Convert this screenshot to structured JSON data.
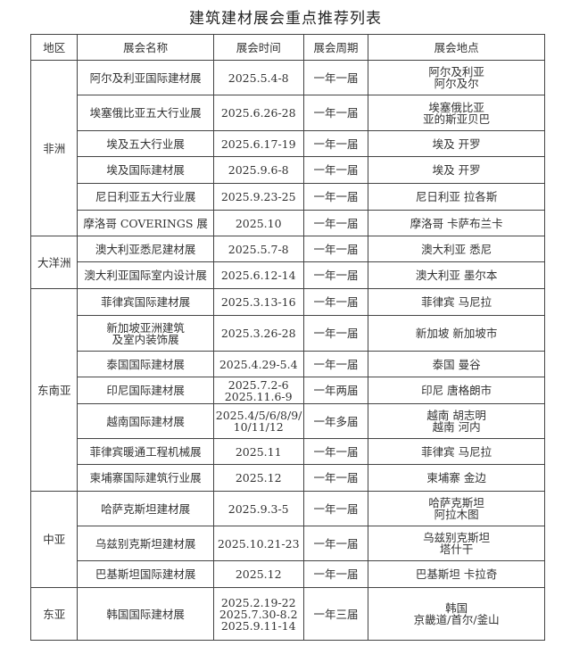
{
  "title": "建筑建材展会重点推荐列表",
  "headers": [
    "地区",
    "展会名称",
    "展会时间",
    "展会周期",
    "展会地点"
  ],
  "groups": [
    {
      "region": "非洲",
      "rows": [
        {
          "name": "阿尔及利亚国际建材展",
          "time": "2025.5.4-8",
          "cycle": "一年一届",
          "place": "阿尔及利亚\n阿尔及尔"
        },
        {
          "name": "埃塞俄比亚五大行业展",
          "time": "2025.6.26-28",
          "cycle": "一年一届",
          "place": "埃塞俄比亚\n亚的斯亚贝巴"
        },
        {
          "name": "埃及五大行业展",
          "time": "2025.6.17-19",
          "cycle": "一年一届",
          "place": "埃及 开罗"
        },
        {
          "name": "埃及国际建材展",
          "time": "2025.9.6-8",
          "cycle": "一年一届",
          "place": "埃及 开罗"
        },
        {
          "name": "尼日利亚五大行业展",
          "time": "2025.9.23-25",
          "cycle": "一年一届",
          "place": "尼日利亚 拉各斯"
        },
        {
          "name": "摩洛哥 COVERINGS 展",
          "time": "2025.10",
          "cycle": "一年一届",
          "place": "摩洛哥 卡萨布兰卡"
        }
      ]
    },
    {
      "region": "大洋洲",
      "rows": [
        {
          "name": "澳大利亚悉尼建材展",
          "time": "2025.5.7-8",
          "cycle": "一年一届",
          "place": "澳大利亚 悉尼"
        },
        {
          "name": "澳大利亚国际室内设计展",
          "time": "2025.6.12-14",
          "cycle": "一年一届",
          "place": "澳大利亚 墨尔本"
        }
      ]
    },
    {
      "region": "东南亚",
      "rows": [
        {
          "name": "菲律宾国际建材展",
          "time": "2025.3.13-16",
          "cycle": "一年一届",
          "place": "菲律宾 马尼拉"
        },
        {
          "name": "新加坡亚洲建筑\n及室内装饰展",
          "time": "2025.3.26-28",
          "cycle": "一年一届",
          "place": "新加坡 新加坡市"
        },
        {
          "name": "泰国国际建材展",
          "time": "2025.4.29-5.4",
          "cycle": "一年一届",
          "place": "泰国 曼谷"
        },
        {
          "name": "印尼国际建材展",
          "time": "2025.7.2-6\n2025.11.6-9",
          "cycle": "一年两届",
          "place": "印尼 唐格朗市"
        },
        {
          "name": "越南国际建材展",
          "time": "2025.4/5/6/8/9/\n10/11/12",
          "cycle": "一年多届",
          "place": "越南 胡志明\n越南 河内"
        },
        {
          "name": "菲律宾暖通工程机械展",
          "time": "2025.11",
          "cycle": "一年一届",
          "place": "菲律宾 马尼拉"
        },
        {
          "name": "柬埔寨国际建筑行业展",
          "time": "2025.12",
          "cycle": "一年一届",
          "place": "柬埔寨 金边"
        }
      ]
    },
    {
      "region": "中亚",
      "rows": [
        {
          "name": "哈萨克斯坦建材展",
          "time": "2025.9.3-5",
          "cycle": "一年一届",
          "place": "哈萨克斯坦\n阿拉木图"
        },
        {
          "name": "乌兹别克斯坦建材展",
          "time": "2025.10.21-23",
          "cycle": "一年一届",
          "place": "乌兹别克斯坦\n塔什干"
        },
        {
          "name": "巴基斯坦国际建材展",
          "time": "2025.12",
          "cycle": "一年一届",
          "place": "巴基斯坦 卡拉奇"
        }
      ]
    },
    {
      "region": "东亚",
      "rows": [
        {
          "name": "韩国国际建材展",
          "time": "2025.2.19-22\n2025.7.30-8.2\n2025.9.11-14",
          "cycle": "一年三届",
          "place": "韩国\n京畿道/首尔/釜山"
        }
      ]
    }
  ]
}
